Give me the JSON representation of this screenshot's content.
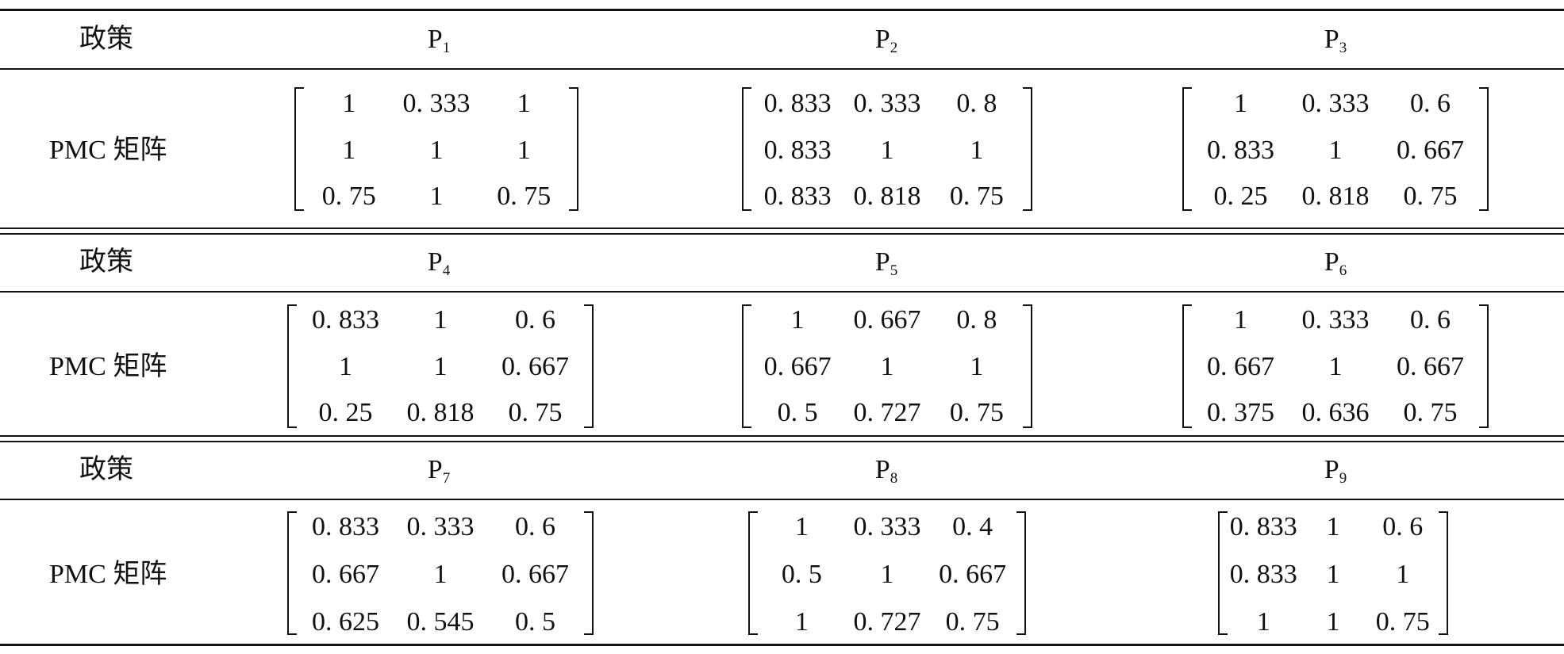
{
  "table": {
    "policy_label": "政策",
    "matrix_label": "PMC 矩阵",
    "sections": [
      {
        "policies": [
          {
            "name": "P",
            "index": "1",
            "matrix": [
              [
                "1",
                "0. 333",
                "1"
              ],
              [
                "1",
                "1",
                "1"
              ],
              [
                "0. 75",
                "1",
                "0. 75"
              ]
            ]
          },
          {
            "name": "P",
            "index": "2",
            "matrix": [
              [
                "0. 833",
                "0. 333",
                "0. 8"
              ],
              [
                "0. 833",
                "1",
                "1"
              ],
              [
                "0. 833",
                "0. 818",
                "0. 75"
              ]
            ]
          },
          {
            "name": "P",
            "index": "3",
            "matrix": [
              [
                "1",
                "0. 333",
                "0. 6"
              ],
              [
                "0. 833",
                "1",
                "0. 667"
              ],
              [
                "0. 25",
                "0. 818",
                "0. 75"
              ]
            ]
          }
        ]
      },
      {
        "policies": [
          {
            "name": "P",
            "index": "4",
            "matrix": [
              [
                "0. 833",
                "1",
                "0. 6"
              ],
              [
                "1",
                "1",
                "0. 667"
              ],
              [
                "0. 25",
                "0. 818",
                "0. 75"
              ]
            ]
          },
          {
            "name": "P",
            "index": "5",
            "matrix": [
              [
                "1",
                "0. 667",
                "0. 8"
              ],
              [
                "0. 667",
                "1",
                "1"
              ],
              [
                "0. 5",
                "0. 727",
                "0. 75"
              ]
            ]
          },
          {
            "name": "P",
            "index": "6",
            "matrix": [
              [
                "1",
                "0. 333",
                "0. 6"
              ],
              [
                "0. 667",
                "1",
                "0. 667"
              ],
              [
                "0. 375",
                "0. 636",
                "0. 75"
              ]
            ]
          }
        ]
      },
      {
        "policies": [
          {
            "name": "P",
            "index": "7",
            "matrix": [
              [
                "0. 833",
                "0. 333",
                "0. 6"
              ],
              [
                "0. 667",
                "1",
                "0. 667"
              ],
              [
                "0. 625",
                "0. 545",
                "0. 5"
              ]
            ]
          },
          {
            "name": "P",
            "index": "8",
            "matrix": [
              [
                "1",
                "0. 333",
                "0. 4"
              ],
              [
                "0. 5",
                "1",
                "0. 667"
              ],
              [
                "1",
                "0. 727",
                "0. 75"
              ]
            ]
          },
          {
            "name": "P",
            "index": "9",
            "matrix": [
              [
                "0. 833",
                "1",
                "0. 6"
              ],
              [
                "0. 833",
                "1",
                "1"
              ],
              [
                "1",
                "1",
                "0. 75"
              ]
            ]
          }
        ]
      }
    ]
  }
}
